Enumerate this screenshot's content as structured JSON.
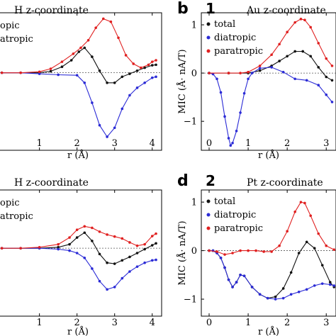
{
  "chart_data": [
    {
      "panel": "a",
      "type": "scatter",
      "title": "H z-coordinate",
      "panel_letter": "",
      "panel_number": "",
      "xlabel": "r (Å)",
      "ylabel": "",
      "xlim": [
        -0.2,
        4.25
      ],
      "ylim": [
        -1.55,
        1.2
      ],
      "xticks": [
        "1",
        "2",
        "3",
        "4"
      ],
      "yticks": [],
      "legend": {
        "placement": "upper-left",
        "entries": [
          "opic",
          "atropic"
        ]
      },
      "series": [
        {
          "name": "total",
          "color": "#111111",
          "x": [
            0,
            0.5,
            1.0,
            1.3,
            1.6,
            1.85,
            2.05,
            2.2,
            2.4,
            2.6,
            2.8,
            3.0,
            3.2,
            3.4,
            3.6,
            3.8,
            4.0,
            4.1
          ],
          "y": [
            0,
            0,
            0,
            0.03,
            0.12,
            0.25,
            0.42,
            0.5,
            0.32,
            0.04,
            -0.2,
            -0.2,
            -0.08,
            -0.02,
            0.04,
            0.1,
            0.15,
            0.16
          ]
        },
        {
          "name": "diatropic",
          "color": "#2b2bd6",
          "x": [
            0,
            0.5,
            1.0,
            1.5,
            2.0,
            2.2,
            2.4,
            2.6,
            2.8,
            3.0,
            3.2,
            3.4,
            3.6,
            3.8,
            4.0,
            4.1
          ],
          "y": [
            0,
            0,
            -0.02,
            -0.04,
            -0.05,
            -0.2,
            -0.6,
            -1.05,
            -1.28,
            -1.1,
            -0.72,
            -0.45,
            -0.3,
            -0.2,
            -0.1,
            -0.08
          ]
        },
        {
          "name": "paratropic",
          "color": "#e02020",
          "x": [
            0,
            0.5,
            1.0,
            1.3,
            1.6,
            1.9,
            2.1,
            2.3,
            2.5,
            2.7,
            2.9,
            3.1,
            3.3,
            3.5,
            3.7,
            3.9,
            4.0,
            4.1
          ],
          "y": [
            0,
            0,
            0.02,
            0.08,
            0.22,
            0.38,
            0.5,
            0.65,
            0.9,
            1.08,
            1.02,
            0.7,
            0.35,
            0.18,
            0.1,
            0.16,
            0.22,
            0.25
          ]
        }
      ]
    },
    {
      "panel": "b",
      "type": "scatter",
      "title": "Au z-coordinate",
      "panel_letter": "b",
      "panel_number": "1",
      "xlabel": "r (Å)",
      "ylabel": "MIC (Å· nA/T)",
      "xlim": [
        -0.2,
        3.25
      ],
      "ylim": [
        -1.6,
        1.25
      ],
      "xticks": [
        "0",
        "1",
        "2",
        "3"
      ],
      "yticks": [
        "1",
        "0",
        "-1"
      ],
      "legend": {
        "placement": "upper-left",
        "entries": [
          "total",
          "diatropic",
          "paratropic"
        ]
      },
      "series": [
        {
          "name": "total",
          "color": "#111111",
          "x": [
            0,
            0.5,
            1.0,
            1.3,
            1.6,
            1.8,
            2.0,
            2.2,
            2.4,
            2.6,
            2.8,
            3.0,
            3.15
          ],
          "y": [
            0,
            0,
            0,
            0.05,
            0.15,
            0.25,
            0.35,
            0.45,
            0.45,
            0.35,
            0.12,
            -0.08,
            -0.15
          ]
        },
        {
          "name": "diatropic",
          "color": "#2b2bd6",
          "x": [
            0,
            0.1,
            0.2,
            0.3,
            0.4,
            0.5,
            0.55,
            0.6,
            0.7,
            0.8,
            0.9,
            1.0,
            1.1,
            1.3,
            1.6,
            1.9,
            2.2,
            2.5,
            2.8,
            3.0,
            3.15
          ],
          "y": [
            0,
            -0.02,
            -0.12,
            -0.4,
            -0.9,
            -1.35,
            -1.5,
            -1.45,
            -1.2,
            -0.82,
            -0.42,
            -0.12,
            0,
            0.1,
            0.12,
            0.02,
            -0.12,
            -0.15,
            -0.25,
            -0.45,
            -0.6
          ]
        },
        {
          "name": "paratropic",
          "color": "#e02020",
          "x": [
            0,
            0.5,
            0.8,
            1.0,
            1.3,
            1.6,
            1.8,
            2.0,
            2.2,
            2.35,
            2.45,
            2.6,
            2.8,
            3.0,
            3.15
          ],
          "y": [
            0,
            0,
            0,
            0.02,
            0.15,
            0.38,
            0.6,
            0.85,
            1.05,
            1.12,
            1.1,
            0.95,
            0.62,
            0.3,
            0.15
          ]
        }
      ]
    },
    {
      "panel": "c",
      "type": "scatter",
      "title": "H z-coordinate",
      "panel_letter": "",
      "panel_number": "",
      "xlabel": "r (Å)",
      "ylabel": "",
      "xlim": [
        -0.2,
        4.25
      ],
      "ylim": [
        -1.4,
        1.2
      ],
      "xticks": [
        "1",
        "2",
        "3",
        "4"
      ],
      "yticks": [],
      "legend": {
        "placement": "upper-left",
        "entries": [
          "opic",
          "atropic"
        ]
      },
      "series": [
        {
          "name": "total",
          "color": "#111111",
          "x": [
            0,
            0.5,
            1.0,
            1.5,
            1.8,
            2.0,
            2.2,
            2.4,
            2.6,
            2.8,
            3.0,
            3.2,
            3.4,
            3.6,
            3.8,
            4.0,
            4.1
          ],
          "y": [
            0,
            0,
            0,
            0.02,
            0.08,
            0.22,
            0.32,
            0.15,
            -0.12,
            -0.3,
            -0.32,
            -0.25,
            -0.18,
            -0.1,
            -0.02,
            0.06,
            0.1
          ]
        },
        {
          "name": "diatropic",
          "color": "#2b2bd6",
          "x": [
            0,
            0.5,
            1.0,
            1.5,
            1.8,
            2.0,
            2.2,
            2.4,
            2.6,
            2.8,
            3.0,
            3.2,
            3.4,
            3.6,
            3.8,
            4.0,
            4.1
          ],
          "y": [
            0,
            0,
            0,
            -0.02,
            -0.05,
            -0.1,
            -0.2,
            -0.42,
            -0.68,
            -0.85,
            -0.8,
            -0.62,
            -0.48,
            -0.38,
            -0.3,
            -0.25,
            -0.24
          ]
        },
        {
          "name": "paratropic",
          "color": "#e02020",
          "x": [
            0,
            0.5,
            1.0,
            1.5,
            1.8,
            2.0,
            2.2,
            2.4,
            2.6,
            2.8,
            3.0,
            3.2,
            3.4,
            3.6,
            3.8,
            4.0,
            4.1
          ],
          "y": [
            0,
            0,
            0.02,
            0.08,
            0.22,
            0.38,
            0.45,
            0.42,
            0.34,
            0.28,
            0.24,
            0.2,
            0.12,
            0.05,
            0.08,
            0.25,
            0.3
          ]
        }
      ]
    },
    {
      "panel": "d",
      "type": "scatter",
      "title": "Pt z-coordinate",
      "panel_letter": "d",
      "panel_number": "2",
      "xlabel": "r (Å)",
      "ylabel": "MIC (Å· nA/T)",
      "xlim": [
        -0.2,
        3.25
      ],
      "ylim": [
        -1.35,
        1.25
      ],
      "xticks": [
        "0",
        "1",
        "2",
        "3"
      ],
      "yticks": [
        "1",
        "0",
        "-1"
      ],
      "legend": {
        "placement": "upper-left",
        "entries": [
          "total",
          "diatropic",
          "paratropic"
        ]
      },
      "series": [
        {
          "name": "total",
          "color": "#111111",
          "x": [
            0,
            0.1,
            0.2,
            0.3,
            0.4,
            0.5,
            0.6,
            0.7,
            0.8,
            0.9,
            1.1,
            1.3,
            1.5,
            1.7,
            1.9,
            2.1,
            2.3,
            2.5,
            2.7,
            2.9,
            3.1,
            3.2
          ],
          "y": [
            0,
            0,
            -0.05,
            -0.15,
            -0.35,
            -0.6,
            -0.75,
            -0.65,
            -0.5,
            -0.52,
            -0.75,
            -0.9,
            -0.98,
            -0.95,
            -0.78,
            -0.45,
            -0.05,
            0.18,
            0.05,
            -0.3,
            -0.65,
            -0.75
          ]
        },
        {
          "name": "diatropic",
          "color": "#2b2bd6",
          "x": [
            0,
            0.1,
            0.2,
            0.3,
            0.4,
            0.5,
            0.6,
            0.7,
            0.8,
            0.9,
            1.1,
            1.3,
            1.5,
            1.7,
            1.9,
            2.1,
            2.3,
            2.5,
            2.7,
            2.9,
            3.1,
            3.2
          ],
          "y": [
            0,
            0,
            -0.05,
            -0.15,
            -0.35,
            -0.6,
            -0.75,
            -0.65,
            -0.5,
            -0.52,
            -0.75,
            -0.9,
            -0.98,
            -1.0,
            -0.98,
            -0.9,
            -0.85,
            -0.8,
            -0.72,
            -0.68,
            -0.7,
            -0.72
          ]
        },
        {
          "name": "paratropic",
          "color": "#e02020",
          "x": [
            0,
            0.2,
            0.4,
            0.6,
            0.8,
            1.0,
            1.2,
            1.4,
            1.6,
            1.8,
            2.0,
            2.2,
            2.35,
            2.45,
            2.6,
            2.8,
            3.0,
            3.2
          ],
          "y": [
            0,
            -0.02,
            -0.08,
            -0.05,
            0,
            0,
            0,
            -0.02,
            -0.02,
            0.1,
            0.4,
            0.8,
            1.0,
            0.98,
            0.72,
            0.35,
            0.1,
            0.02
          ]
        }
      ]
    }
  ]
}
